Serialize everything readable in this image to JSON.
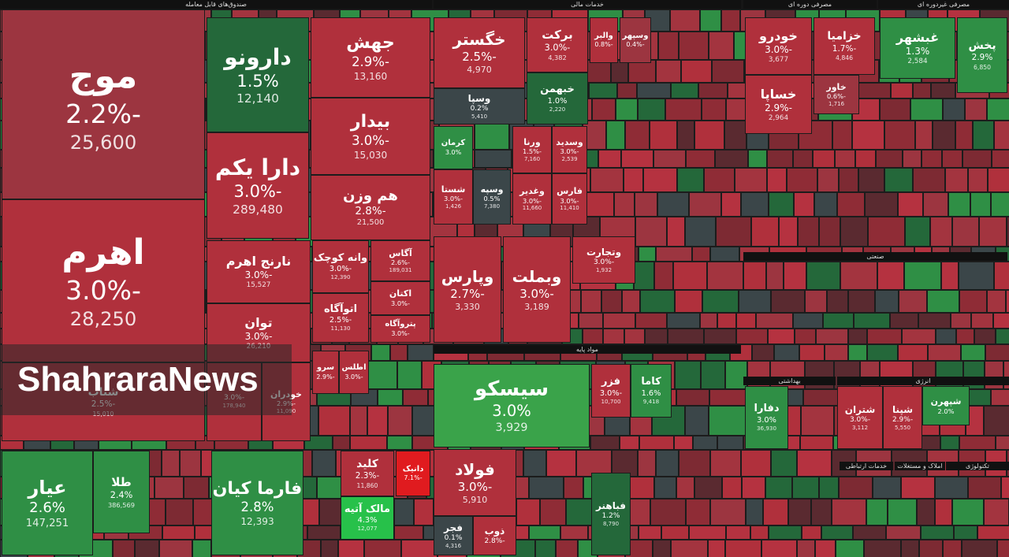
{
  "sections": [
    {
      "title": "صندوق‌های قابل معامله"
    },
    {
      "title": "خدمات مالی"
    },
    {
      "title": "مصرفی دوره ای"
    },
    {
      "title": "مصرفی غیردوره ای"
    },
    {
      "title": "مواد پایه"
    },
    {
      "title": "صنعتی"
    },
    {
      "title": "بهداشتی"
    },
    {
      "title": "انرژی"
    },
    {
      "title": "تکنولوژی"
    },
    {
      "title": "خدمات ارتباطی"
    },
    {
      "title": "املاک و مستغلات"
    }
  ],
  "tiles": [
    {
      "name": "موج",
      "change": "-2.2%",
      "volume": "25,600"
    },
    {
      "name": "اهرم",
      "change": "-3.0%",
      "volume": "28,250"
    },
    {
      "name": "شتاب",
      "change": "-2.5%",
      "volume": "15,010"
    },
    {
      "name": "دارونو",
      "change": "1.5%",
      "volume": "12,140"
    },
    {
      "name": "دارا یکم",
      "change": "-3.0%",
      "volume": "289,480"
    },
    {
      "name": "جهش",
      "change": "-2.9%",
      "volume": "13,160"
    },
    {
      "name": "بیدار",
      "change": "-3.0%",
      "volume": "15,030"
    },
    {
      "name": "هم وزن",
      "change": "-2.8%",
      "volume": "21,500"
    },
    {
      "name": "نارنج اهرم",
      "change": "-3.0%",
      "volume": "15,527"
    },
    {
      "name": "توان",
      "change": "-3.0%",
      "volume": "26,210"
    },
    {
      "change": "-3.0%",
      "volume": "178,940"
    },
    {
      "name": "خودران",
      "change": "-2.9%",
      "volume": "11,090"
    },
    {
      "name": "وانه کوچک",
      "change": "-3.0%",
      "volume": "12,390"
    },
    {
      "name": "اتوآگاه",
      "change": "-2.5%",
      "volume": "11,130"
    },
    {
      "name": "آگاس",
      "change": "-2.6%",
      "volume": "189,031"
    },
    {
      "name": "اکتان",
      "change": "-3.0%"
    },
    {
      "name": "پتروآگاه",
      "change": "-3.0%"
    },
    {
      "name": "اطلس",
      "change": "-3.0%"
    },
    {
      "name": "سرو",
      "change": "-2.9%"
    },
    {
      "name": "عیار",
      "change": "2.6%",
      "volume": "147,251"
    },
    {
      "name": "طلا",
      "change": "2.4%",
      "volume": "386,569"
    },
    {
      "name": "فارما کیان",
      "change": "2.8%",
      "volume": "12,393"
    },
    {
      "name": "کلید",
      "change": "-2.3%",
      "volume": "11,860"
    },
    {
      "name": "دانیک",
      "change": "-7.1%"
    },
    {
      "name": "مالک آتیه",
      "change": "4.3%",
      "volume": "12,077"
    },
    {
      "name": "خگستر",
      "change": "-2.5%",
      "volume": "4,970"
    },
    {
      "name": "برکت",
      "change": "-3.0%",
      "volume": "4,382"
    },
    {
      "name": "وسپا",
      "change": "0.2%",
      "volume": "5,410"
    },
    {
      "name": "خبهمن",
      "change": "1.0%",
      "volume": "2,220"
    },
    {
      "name": "والبر",
      "change": "-0.8%"
    },
    {
      "name": "وسپهر",
      "change": "-0.4%"
    },
    {
      "name": "کرمان",
      "change": "3.0%"
    },
    {
      "name": "ورنا",
      "change": "-1.5%",
      "volume": "7,160"
    },
    {
      "name": "وسدید",
      "change": "-3.0%",
      "volume": "2,539"
    },
    {
      "name": "شستا",
      "change": "-3.0%",
      "volume": "1,426"
    },
    {
      "name": "وسپه",
      "change": "0.5%",
      "volume": "7,380"
    },
    {
      "name": "وغدیر",
      "change": "-3.0%",
      "volume": "11,660"
    },
    {
      "name": "فارس",
      "change": "-3.0%",
      "volume": "11,410"
    },
    {
      "name": "وپارس",
      "change": "-2.7%",
      "volume": "3,330"
    },
    {
      "name": "وبملت",
      "change": "-3.0%",
      "volume": "3,189"
    },
    {
      "name": "وتجارت",
      "change": "-3.0%",
      "volume": "1,932"
    },
    {
      "name": "سیسکو",
      "change": "3.0%",
      "volume": "3,929"
    },
    {
      "name": "فولاد",
      "change": "-3.0%",
      "volume": "5,910"
    },
    {
      "name": "فجر",
      "change": "0.1%",
      "volume": "4,316"
    },
    {
      "name": "ذوب",
      "change": "-2.8%"
    },
    {
      "name": "فزر",
      "change": "-3.0%",
      "volume": "10,700"
    },
    {
      "name": "کاما",
      "change": "1.6%",
      "volume": "9,418"
    },
    {
      "name": "فباهنر",
      "change": "1.2%",
      "volume": "8,790"
    },
    {
      "name": "خودرو",
      "change": "-3.0%",
      "volume": "3,677"
    },
    {
      "name": "خزامیا",
      "change": "-1.7%",
      "volume": "4,846"
    },
    {
      "name": "خساپا",
      "change": "-2.9%",
      "volume": "2,964"
    },
    {
      "name": "خاور",
      "change": "-0.6%",
      "volume": "1,716"
    },
    {
      "name": "غبشهر",
      "change": "1.3%",
      "volume": "2,584"
    },
    {
      "name": "پخش",
      "change": "2.9%",
      "volume": "6,850"
    },
    {
      "name": "دفارا",
      "change": "3.0%",
      "volume": "36,930"
    },
    {
      "name": "شتران",
      "change": "-3.0%",
      "volume": "3,112"
    },
    {
      "name": "شپنا",
      "change": "-2.9%",
      "volume": "5,550"
    },
    {
      "name": "شپهرن",
      "change": "2.0%"
    }
  ],
  "watermark": "ShahraraNews"
}
